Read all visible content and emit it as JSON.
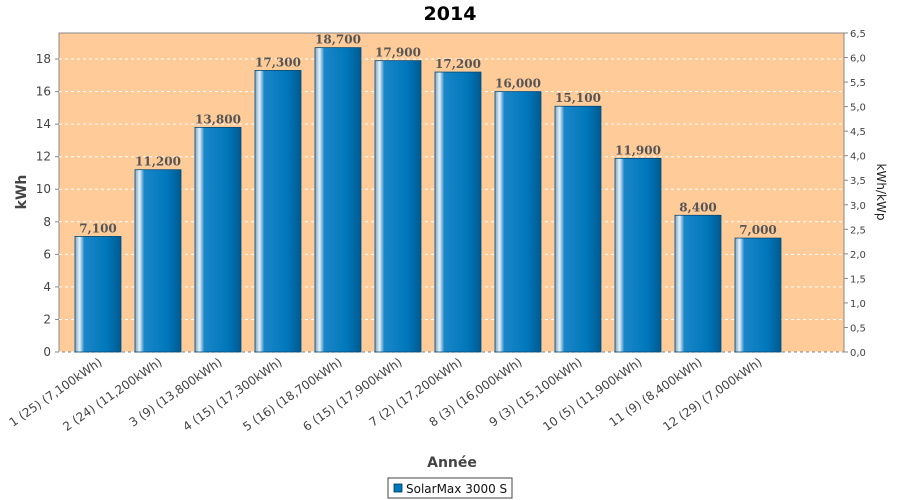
{
  "chart_data": {
    "type": "bar",
    "title": "2014",
    "xlabel": "Année",
    "ylabel": "kWh",
    "ylabel_right": "kWh/kWp",
    "ylim": [
      0,
      19.6
    ],
    "yticks": [
      "0",
      "2",
      "4",
      "6",
      "8",
      "10",
      "12",
      "14",
      "16",
      "18"
    ],
    "ylim_right": [
      0,
      6.5
    ],
    "yticks_right": [
      "0,0",
      "0,5",
      "1,0",
      "1,5",
      "2,0",
      "2,5",
      "3,0",
      "3,5",
      "4,0",
      "4,5",
      "5,0",
      "5,5",
      "6,0",
      "6,5"
    ],
    "grid": true,
    "legend_position": "bottom",
    "categories": [
      "1 (25)  (7,100kWh)",
      "2 (24)  (11,200kWh)",
      "3 (9)  (13,800kWh)",
      "4 (15)  (17,300kWh)",
      "5 (16)  (18,700kWh)",
      "6 (15)  (17,900kWh)",
      "7 (2)  (17,200kWh)",
      "8 (3)  (16,000kWh)",
      "9 (3)  (15,100kWh)",
      "10 (5)  (11,900kWh)",
      "11 (9)  (8,400kWh)",
      "12 (29)  (7,000kWh)"
    ],
    "series": [
      {
        "name": "SolarMax 3000 S",
        "values": [
          7.1,
          11.2,
          13.8,
          17.3,
          18.7,
          17.9,
          17.2,
          16.0,
          15.1,
          11.9,
          8.4,
          7.0
        ],
        "labels": [
          "7,100",
          "11,200",
          "13,800",
          "17,300",
          "18,700",
          "17,900",
          "17,200",
          "16,000",
          "15,100",
          "11,900",
          "8,400",
          "7,000"
        ]
      }
    ]
  },
  "colors": {
    "plot_background": "#ffcc99",
    "bar_main": "#0077bb",
    "bar_dark": "#005a90",
    "bar_highlight": "#cfe4f2",
    "grid": "#ffffff"
  }
}
